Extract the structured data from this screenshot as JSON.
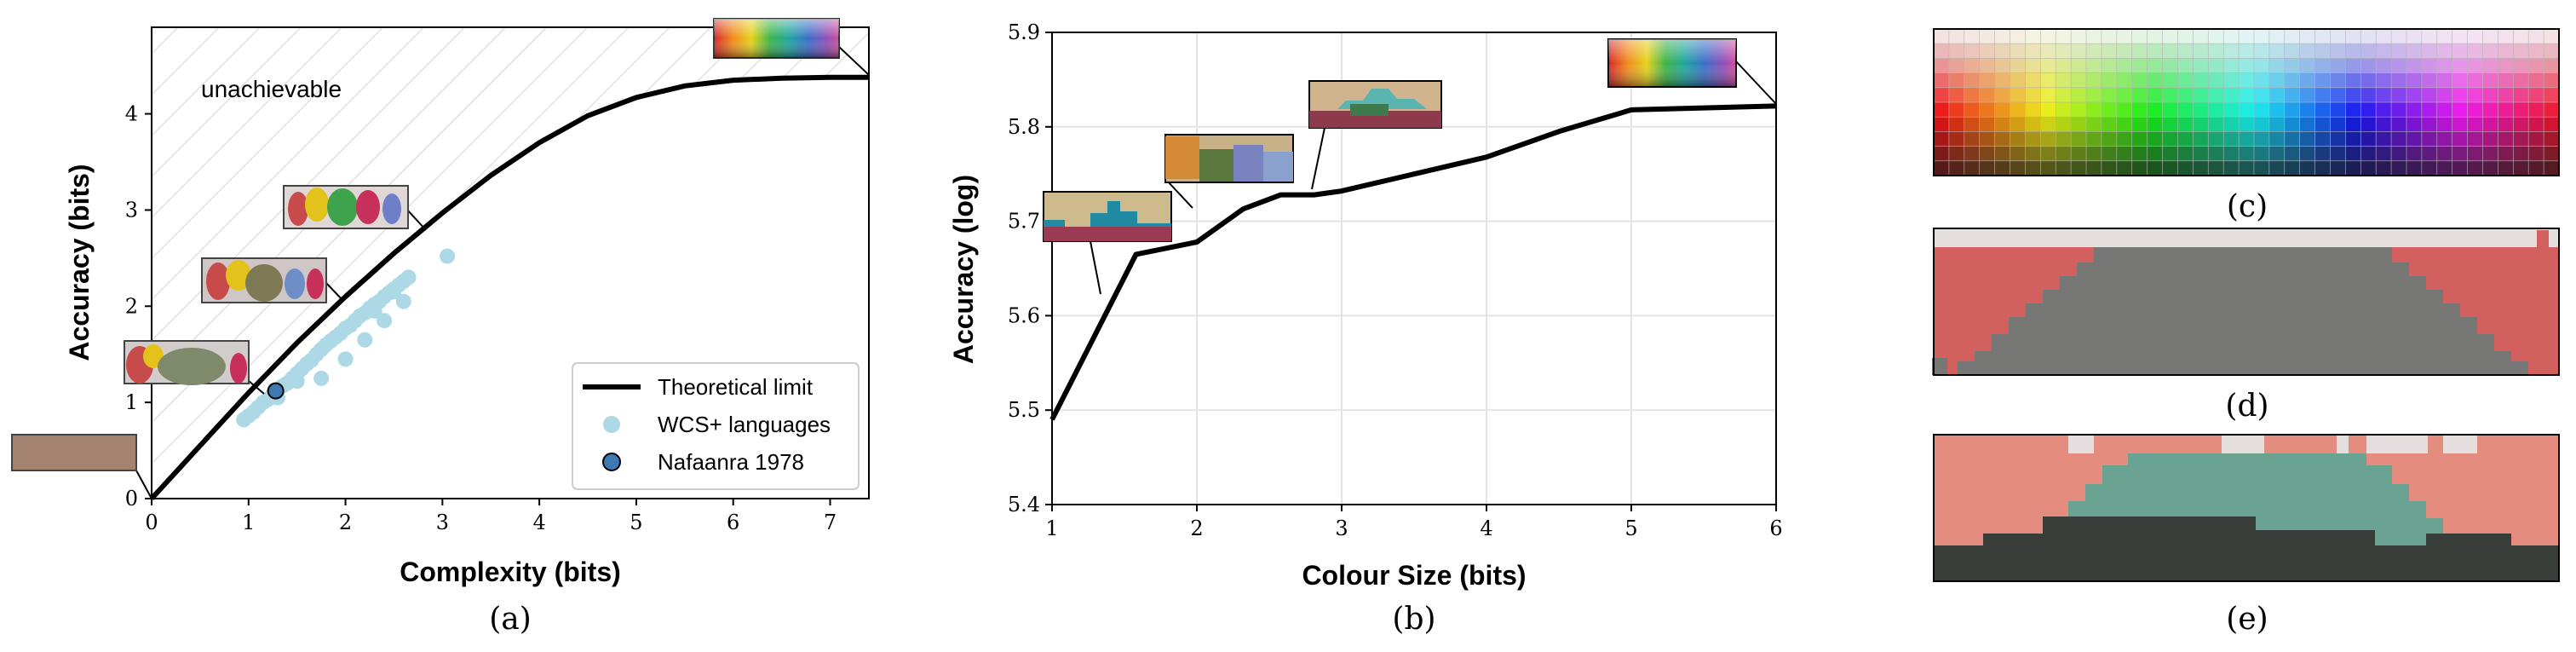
{
  "colors": {
    "limit_line": "#000000",
    "wcs_points": "#add8e6",
    "nafaanra_fill": "#3f79b3",
    "hatch": "#c8c8c8"
  },
  "panel_labels": {
    "a": "(a)",
    "b": "(b)",
    "c": "(c)",
    "d": "(d)",
    "e": "(e)"
  },
  "chart_data": [
    {
      "id": "a",
      "type": "scatter",
      "title": "",
      "xlabel": "Complexity (bits)",
      "ylabel": "Accuracy (bits)",
      "xlim": [
        0,
        7.4
      ],
      "ylim": [
        0,
        4.9
      ],
      "xticks": [
        0,
        1,
        2,
        3,
        4,
        5,
        6,
        7
      ],
      "yticks": [
        0,
        1,
        2,
        3,
        4
      ],
      "grid": false,
      "legend_position": "bottom-right",
      "annotation": "unachievable",
      "series": [
        {
          "name": "Theoretical limit",
          "kind": "line",
          "x": [
            0,
            0.5,
            1,
            1.5,
            2,
            2.5,
            3,
            3.5,
            4,
            4.5,
            5,
            5.5,
            6,
            6.5,
            7,
            7.4
          ],
          "y": [
            0,
            0.55,
            1.1,
            1.62,
            2.1,
            2.55,
            2.97,
            3.36,
            3.7,
            3.98,
            4.17,
            4.29,
            4.35,
            4.37,
            4.38,
            4.38
          ]
        },
        {
          "name": "WCS+ languages",
          "kind": "scatter",
          "x": [
            0.95,
            1.0,
            1.05,
            1.1,
            1.15,
            1.2,
            1.25,
            1.3,
            1.35,
            1.4,
            1.45,
            1.5,
            1.55,
            1.6,
            1.65,
            1.7,
            1.75,
            1.8,
            1.85,
            1.9,
            1.95,
            2.0,
            2.05,
            2.1,
            2.15,
            2.2,
            2.25,
            2.3,
            2.35,
            2.4,
            2.45,
            2.5,
            2.55,
            2.6,
            2.65,
            1.75,
            2.0,
            2.2,
            2.4,
            2.6,
            3.05,
            1.3,
            1.5,
            2.3,
            2.5
          ],
          "y": [
            0.82,
            0.86,
            0.9,
            0.95,
            1.0,
            1.03,
            1.08,
            1.12,
            1.17,
            1.2,
            1.25,
            1.3,
            1.35,
            1.4,
            1.44,
            1.5,
            1.55,
            1.6,
            1.64,
            1.68,
            1.72,
            1.77,
            1.8,
            1.85,
            1.9,
            1.93,
            1.98,
            2.02,
            2.05,
            2.1,
            2.14,
            2.18,
            2.22,
            2.26,
            2.3,
            1.25,
            1.45,
            1.65,
            1.85,
            2.05,
            2.52,
            1.05,
            1.22,
            1.95,
            2.15
          ]
        },
        {
          "name": "Nafaanra 1978",
          "kind": "scatter",
          "x": [
            1.28
          ],
          "y": [
            1.12
          ]
        }
      ]
    },
    {
      "id": "b",
      "type": "line",
      "title": "",
      "xlabel": "Colour Size (bits)",
      "ylabel": "Accuracy (log)",
      "xlim": [
        1,
        6
      ],
      "ylim": [
        5.4,
        5.9
      ],
      "xticks": [
        1,
        2,
        3,
        4,
        5,
        6
      ],
      "yticks": [
        5.4,
        5.5,
        5.6,
        5.7,
        5.8,
        5.9
      ],
      "grid": true,
      "series": [
        {
          "name": "",
          "x": [
            1.0,
            1.58,
            2.0,
            2.32,
            2.58,
            2.81,
            3.0,
            3.5,
            4.0,
            4.5,
            5.0,
            6.0
          ],
          "y": [
            5.49,
            5.665,
            5.678,
            5.713,
            5.728,
            5.728,
            5.732,
            5.75,
            5.768,
            5.795,
            5.818,
            5.822
          ]
        }
      ]
    }
  ]
}
